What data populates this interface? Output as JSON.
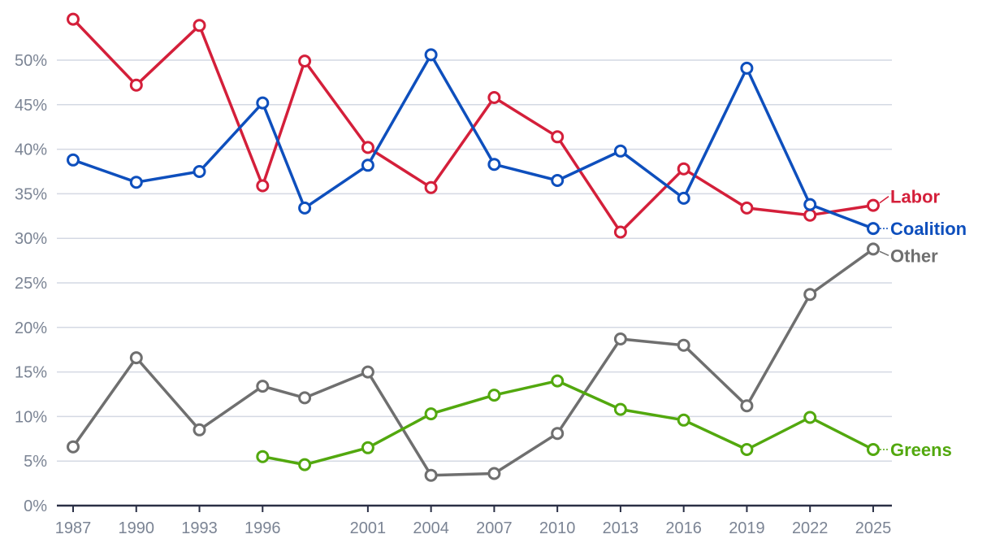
{
  "chart_data": {
    "type": "line",
    "title": "",
    "xlabel": "",
    "ylabel": "",
    "ylim": [
      0,
      55
    ],
    "grid": true,
    "legend": "inline labels at right end of each line",
    "yticks": [
      "0%",
      "5%",
      "10%",
      "15%",
      "20%",
      "25%",
      "30%",
      "35%",
      "40%",
      "45%",
      "50%"
    ],
    "xticks": [
      "1987",
      "1990",
      "1993",
      "1996",
      "2001",
      "2004",
      "2007",
      "2010",
      "2013",
      "2016",
      "2019",
      "2022",
      "2025"
    ],
    "series": [
      {
        "name": "Labor",
        "color": "#d41f3a",
        "points": [
          [
            1987,
            54.6
          ],
          [
            1990,
            47.2
          ],
          [
            1993,
            53.9
          ],
          [
            1996,
            35.9
          ],
          [
            1998,
            49.9
          ],
          [
            2001,
            40.2
          ],
          [
            2004,
            35.7
          ],
          [
            2007,
            45.8
          ],
          [
            2010,
            41.4
          ],
          [
            2013,
            30.7
          ],
          [
            2016,
            37.8
          ],
          [
            2019,
            33.4
          ],
          [
            2022,
            32.6
          ],
          [
            2025,
            33.7
          ]
        ]
      },
      {
        "name": "Coalition",
        "color": "#0e4fbd",
        "points": [
          [
            1987,
            38.8
          ],
          [
            1990,
            36.3
          ],
          [
            1993,
            37.5
          ],
          [
            1996,
            45.2
          ],
          [
            1998,
            33.4
          ],
          [
            2001,
            38.2
          ],
          [
            2004,
            50.6
          ],
          [
            2007,
            38.3
          ],
          [
            2010,
            36.5
          ],
          [
            2013,
            39.8
          ],
          [
            2016,
            34.5
          ],
          [
            2019,
            49.1
          ],
          [
            2022,
            33.8
          ],
          [
            2025,
            31.1
          ]
        ]
      },
      {
        "name": "Other",
        "color": "#6f6f6f",
        "points": [
          [
            1987,
            6.6
          ],
          [
            1990,
            16.6
          ],
          [
            1993,
            8.5
          ],
          [
            1996,
            13.4
          ],
          [
            1998,
            12.1
          ],
          [
            2001,
            15.0
          ],
          [
            2004,
            3.4
          ],
          [
            2007,
            3.6
          ],
          [
            2010,
            8.1
          ],
          [
            2013,
            18.7
          ],
          [
            2016,
            18.0
          ],
          [
            2019,
            11.2
          ],
          [
            2022,
            23.7
          ],
          [
            2025,
            28.8
          ]
        ]
      },
      {
        "name": "Greens",
        "color": "#52a80e",
        "points": [
          [
            1996,
            5.5
          ],
          [
            1998,
            4.6
          ],
          [
            2001,
            6.5
          ],
          [
            2004,
            10.3
          ],
          [
            2007,
            12.4
          ],
          [
            2010,
            14.0
          ],
          [
            2013,
            10.8
          ],
          [
            2016,
            9.6
          ],
          [
            2019,
            6.3
          ],
          [
            2022,
            9.9
          ],
          [
            2025,
            6.3
          ]
        ]
      }
    ]
  }
}
